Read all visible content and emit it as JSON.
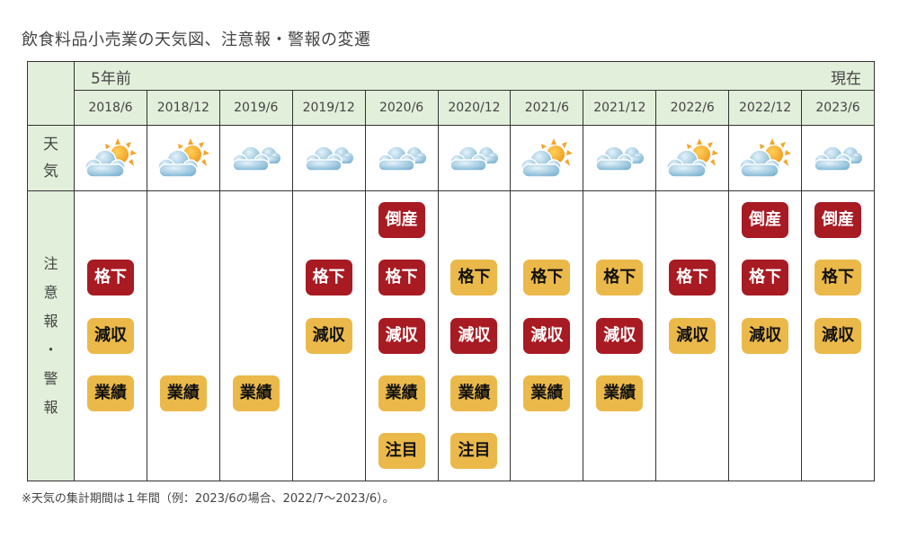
{
  "title": "飲食料品小売業の天気図、注意報・警報の変遷",
  "header": {
    "left_label": "5年前",
    "right_label": "現在"
  },
  "row_labels": {
    "weather": [
      "天",
      "気"
    ],
    "alerts": [
      "注",
      "意",
      "報",
      "・",
      "警",
      "報"
    ]
  },
  "colors": {
    "header_bg": "#e2efda",
    "warning_red": "#a81b23",
    "advisory_yellow": "#ebb94a",
    "border": "#333333"
  },
  "legend_note": "※天気の集計期間は１年間（例：2023/6の場合、2022/7～2023/6）。",
  "chart_data": {
    "type": "table",
    "title": "飲食料品小売業の天気図、注意報・警報の変遷",
    "columns": [
      "2018/6",
      "2018/12",
      "2019/6",
      "2019/12",
      "2020/6",
      "2020/12",
      "2021/6",
      "2021/12",
      "2022/6",
      "2022/12",
      "2023/6"
    ],
    "alert_slots": [
      "倒産",
      "格下",
      "減収",
      "業績",
      "注目"
    ],
    "rows": [
      {
        "date": "2018/6",
        "weather": "sun-behind-cloud",
        "alerts": {
          "倒産": null,
          "格下": "red",
          "減収": "yellow",
          "業績": "yellow",
          "注目": null
        }
      },
      {
        "date": "2018/12",
        "weather": "sun-behind-cloud",
        "alerts": {
          "倒産": null,
          "格下": null,
          "減収": null,
          "業績": "yellow",
          "注目": null
        }
      },
      {
        "date": "2019/6",
        "weather": "cloudy",
        "alerts": {
          "倒産": null,
          "格下": null,
          "減収": null,
          "業績": "yellow",
          "注目": null
        }
      },
      {
        "date": "2019/12",
        "weather": "cloudy",
        "alerts": {
          "倒産": null,
          "格下": "red",
          "減収": "yellow",
          "業績": null,
          "注目": null
        }
      },
      {
        "date": "2020/6",
        "weather": "cloudy",
        "alerts": {
          "倒産": "red",
          "格下": "red",
          "減収": "red",
          "業績": "yellow",
          "注目": "yellow"
        }
      },
      {
        "date": "2020/12",
        "weather": "cloudy",
        "alerts": {
          "倒産": null,
          "格下": "yellow",
          "減収": "red",
          "業績": "yellow",
          "注目": "yellow"
        }
      },
      {
        "date": "2021/6",
        "weather": "sun-behind-cloud",
        "alerts": {
          "倒産": null,
          "格下": "yellow",
          "減収": "red",
          "業績": "yellow",
          "注目": null
        }
      },
      {
        "date": "2021/12",
        "weather": "cloudy",
        "alerts": {
          "倒産": null,
          "格下": "yellow",
          "減収": "red",
          "業績": "yellow",
          "注目": null
        }
      },
      {
        "date": "2022/6",
        "weather": "sun-behind-cloud",
        "alerts": {
          "倒産": null,
          "格下": "red",
          "減収": "yellow",
          "業績": null,
          "注目": null
        }
      },
      {
        "date": "2022/12",
        "weather": "sun-behind-cloud",
        "alerts": {
          "倒産": "red",
          "格下": "red",
          "減収": "yellow",
          "業績": null,
          "注目": null
        }
      },
      {
        "date": "2023/6",
        "weather": "cloudy",
        "alerts": {
          "倒産": "red",
          "格下": "yellow",
          "減収": "yellow",
          "業績": null,
          "注目": null
        }
      }
    ],
    "legend": {
      "red": "警報",
      "yellow": "注意報"
    }
  }
}
